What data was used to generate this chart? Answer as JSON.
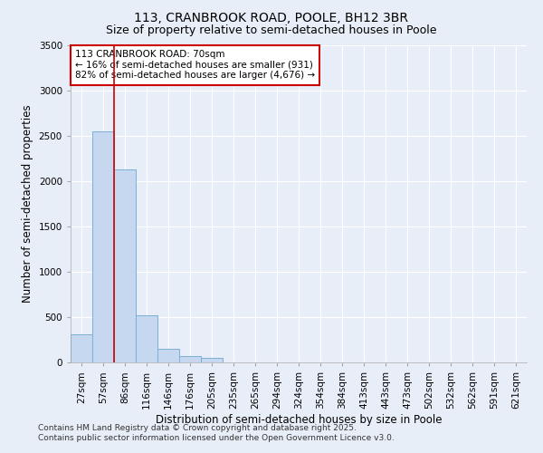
{
  "title_line1": "113, CRANBROOK ROAD, POOLE, BH12 3BR",
  "title_line2": "Size of property relative to semi-detached houses in Poole",
  "xlabel": "Distribution of semi-detached houses by size in Poole",
  "ylabel": "Number of semi-detached properties",
  "categories": [
    "27sqm",
    "57sqm",
    "86sqm",
    "116sqm",
    "146sqm",
    "176sqm",
    "205sqm",
    "235sqm",
    "265sqm",
    "294sqm",
    "324sqm",
    "354sqm",
    "384sqm",
    "413sqm",
    "443sqm",
    "473sqm",
    "502sqm",
    "532sqm",
    "562sqm",
    "591sqm",
    "621sqm"
  ],
  "values": [
    310,
    2550,
    2130,
    520,
    155,
    75,
    50,
    0,
    0,
    0,
    0,
    0,
    0,
    0,
    0,
    0,
    0,
    0,
    0,
    0,
    0
  ],
  "bar_color": "#c5d8f0",
  "bar_edge_color": "#7bafd4",
  "annotation_title": "113 CRANBROOK ROAD: 70sqm",
  "annotation_line1": "← 16% of semi-detached houses are smaller (931)",
  "annotation_line2": "82% of semi-detached houses are larger (4,676) →",
  "annotation_box_facecolor": "#ffffff",
  "annotation_box_edgecolor": "#cc0000",
  "ylim": [
    0,
    3500
  ],
  "yticks": [
    0,
    500,
    1000,
    1500,
    2000,
    2500,
    3000,
    3500
  ],
  "red_line_color": "#cc0000",
  "footer_line1": "Contains HM Land Registry data © Crown copyright and database right 2025.",
  "footer_line2": "Contains public sector information licensed under the Open Government Licence v3.0.",
  "bg_color": "#e8eef8",
  "plot_bg_color": "#e8eef8",
  "grid_color": "#ffffff",
  "title_fontsize": 10,
  "subtitle_fontsize": 9,
  "axis_label_fontsize": 8.5,
  "tick_fontsize": 7.5,
  "annotation_fontsize": 7.5,
  "footer_fontsize": 6.5
}
